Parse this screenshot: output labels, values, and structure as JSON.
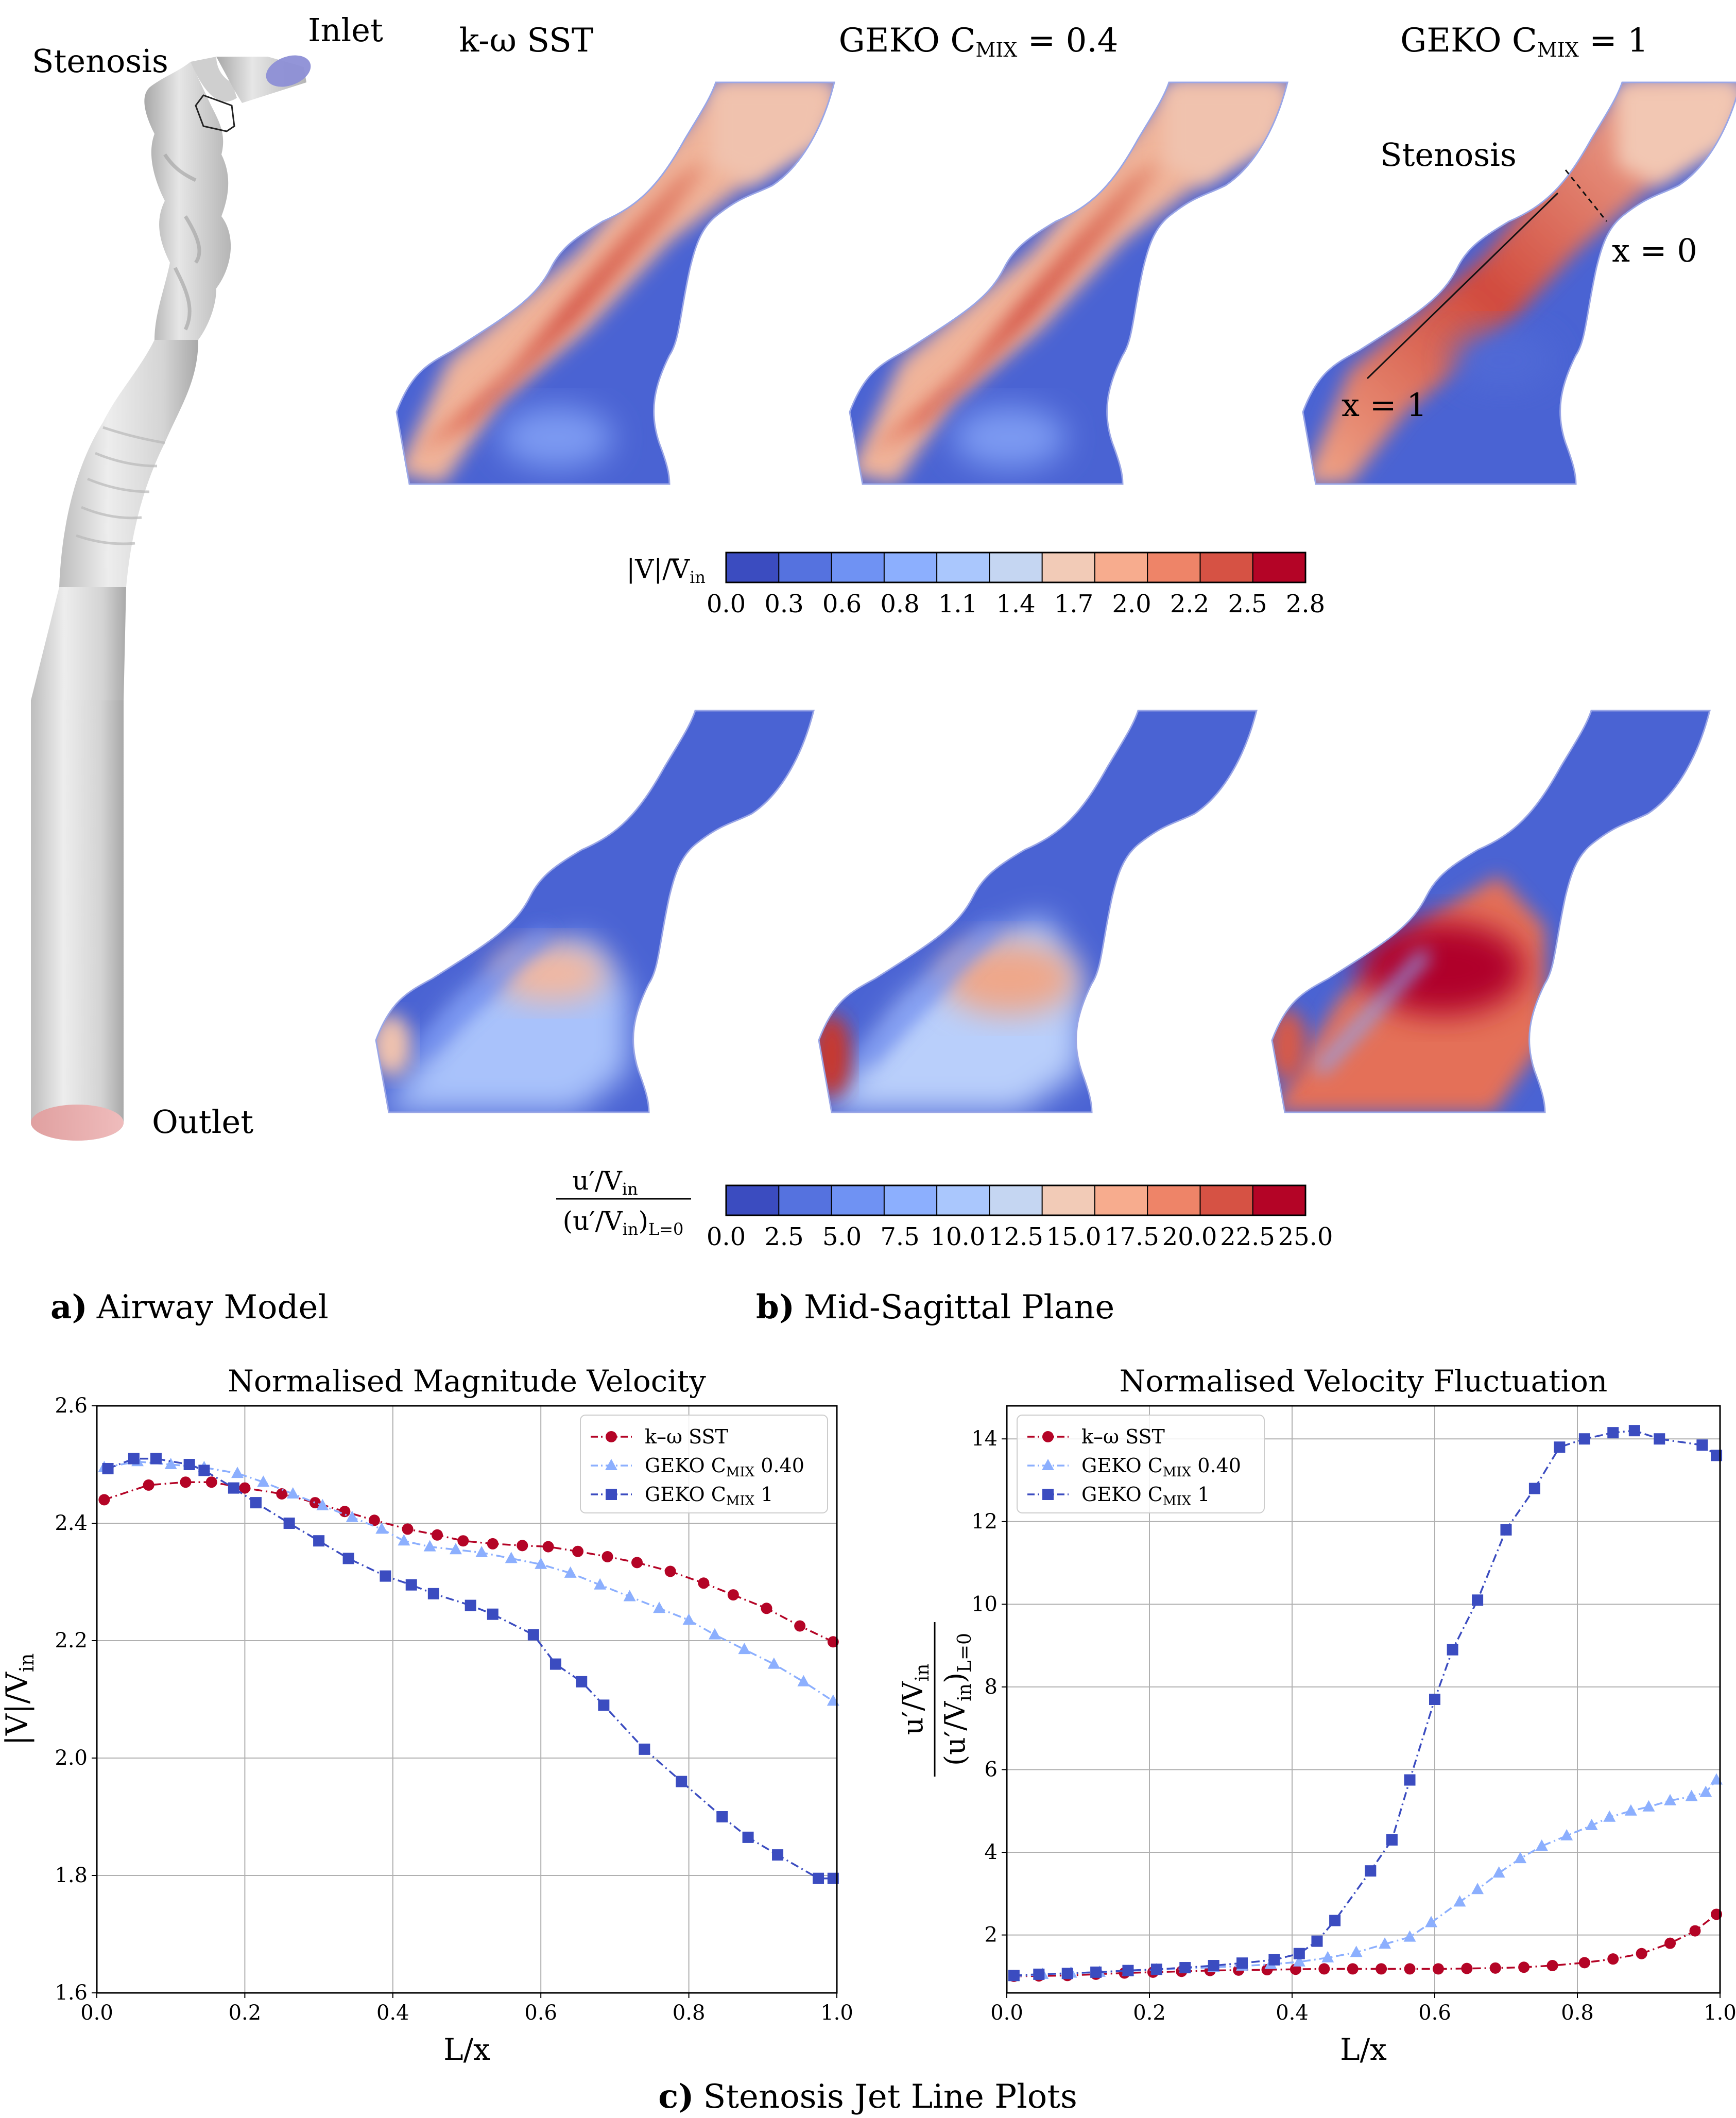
{
  "airway": {
    "label_stenosis": "Stenosis",
    "label_inlet": "Inlet",
    "label_outlet": "Outlet"
  },
  "contours": {
    "col_titles": [
      "k-ω SST",
      "GEKO C",
      "GEKO C"
    ],
    "col_title_sub": [
      "",
      "MIX",
      "MIX"
    ],
    "col_title_suffix": [
      "",
      " = 0.4",
      " = 1"
    ],
    "annot_stenosis": "Stenosis",
    "annot_x0": "x = 0",
    "annot_x1": "x = 1",
    "cbar1": {
      "label": "|V|/V",
      "label_sub": "in",
      "ticks": [
        "0.0",
        "0.3",
        "0.6",
        "0.8",
        "1.1",
        "1.4",
        "1.7",
        "2.0",
        "2.2",
        "2.5",
        "2.8"
      ],
      "colors": [
        "#3b4cc0",
        "#5572df",
        "#6f92f3",
        "#8caffe",
        "#aac7fd",
        "#c5d6f2",
        "#f2cbb7",
        "#f7ac8e",
        "#ee8468",
        "#d65244",
        "#b40426"
      ]
    },
    "cbar2": {
      "num": "u′/V",
      "num_sub": "in",
      "den": "(u′/V",
      "den_sub": "in",
      "den_tail": ")",
      "den_tail_sub": "L=0",
      "ticks": [
        "0.0",
        "2.5",
        "5.0",
        "7.5",
        "10.0",
        "12.5",
        "15.0",
        "17.5",
        "20.0",
        "22.5",
        "25.0"
      ],
      "colors": [
        "#3b4cc0",
        "#5572df",
        "#6f92f3",
        "#8caffe",
        "#aac7fd",
        "#c5d6f2",
        "#f2cbb7",
        "#f7ac8e",
        "#ee8468",
        "#d65244",
        "#b40426"
      ]
    }
  },
  "captions": {
    "a_letter": "a)",
    "a_text": "Airway Model",
    "b_letter": "b)",
    "b_text": "Mid-Sagittal Plane",
    "c_letter": "c)",
    "c_text": "Stenosis Jet Line Plots"
  },
  "chart_data": [
    {
      "type": "line",
      "title": "Normalised Magnitude Velocity",
      "xlabel": "L/x",
      "ylabel": "|V|/V",
      "ylabel_sub": "in",
      "xlim": [
        0,
        1
      ],
      "ylim": [
        1.6,
        2.6
      ],
      "xticks": [
        "0.0",
        "0.2",
        "0.4",
        "0.6",
        "0.8",
        "1.0"
      ],
      "yticks": [
        "1.6",
        "1.8",
        "2.0",
        "2.2",
        "2.4",
        "2.6"
      ],
      "grid": true,
      "legend_position": "top-right",
      "series": [
        {
          "name": "k–ω SST",
          "color": "#b40426",
          "marker": "circle",
          "x": [
            0.01,
            0.07,
            0.12,
            0.155,
            0.2,
            0.25,
            0.295,
            0.335,
            0.375,
            0.42,
            0.46,
            0.495,
            0.535,
            0.575,
            0.61,
            0.65,
            0.69,
            0.73,
            0.775,
            0.82,
            0.86,
            0.905,
            0.95,
            0.995
          ],
          "y": [
            2.44,
            2.465,
            2.47,
            2.47,
            2.46,
            2.45,
            2.435,
            2.42,
            2.405,
            2.39,
            2.38,
            2.37,
            2.365,
            2.362,
            2.36,
            2.352,
            2.343,
            2.333,
            2.318,
            2.298,
            2.278,
            2.255,
            2.225,
            2.198
          ]
        },
        {
          "name": "GEKO C_MIX 0.40",
          "color": "#8caffe",
          "marker": "triangle",
          "x": [
            0.01,
            0.055,
            0.1,
            0.145,
            0.19,
            0.225,
            0.265,
            0.305,
            0.345,
            0.385,
            0.415,
            0.45,
            0.485,
            0.52,
            0.56,
            0.6,
            0.64,
            0.68,
            0.72,
            0.76,
            0.8,
            0.835,
            0.875,
            0.915,
            0.955,
            0.995
          ],
          "y": [
            2.495,
            2.505,
            2.5,
            2.495,
            2.485,
            2.47,
            2.45,
            2.43,
            2.41,
            2.39,
            2.37,
            2.36,
            2.355,
            2.35,
            2.34,
            2.33,
            2.315,
            2.295,
            2.275,
            2.255,
            2.235,
            2.21,
            2.185,
            2.16,
            2.13,
            2.097
          ]
        },
        {
          "name": "GEKO C_MIX 1",
          "color": "#3b4cc0",
          "marker": "square",
          "x": [
            0.015,
            0.05,
            0.08,
            0.125,
            0.145,
            0.185,
            0.215,
            0.26,
            0.3,
            0.34,
            0.39,
            0.425,
            0.455,
            0.505,
            0.535,
            0.59,
            0.62,
            0.655,
            0.685,
            0.74,
            0.79,
            0.845,
            0.88,
            0.92,
            0.975,
            0.995
          ],
          "y": [
            2.493,
            2.51,
            2.51,
            2.5,
            2.49,
            2.46,
            2.435,
            2.4,
            2.37,
            2.34,
            2.31,
            2.295,
            2.28,
            2.26,
            2.245,
            2.21,
            2.16,
            2.13,
            2.09,
            2.015,
            1.96,
            1.9,
            1.865,
            1.835,
            1.795,
            1.795
          ]
        }
      ]
    },
    {
      "type": "line",
      "title": "Normalised Velocity Fluctuation",
      "xlabel": "L/x",
      "ylabel_num": "u′/V",
      "ylabel_num_sub": "in",
      "ylabel_den": "(u′/V",
      "ylabel_den_sub": "in",
      "ylabel_den_tail": ")",
      "ylabel_den_tail_sub": "L=0",
      "xlim": [
        0,
        1
      ],
      "ylim": [
        0.6,
        14.8
      ],
      "xticks": [
        "0.0",
        "0.2",
        "0.4",
        "0.6",
        "0.8",
        "1.0"
      ],
      "yticks": [
        "2",
        "4",
        "6",
        "8",
        "10",
        "12",
        "14"
      ],
      "grid": true,
      "legend_position": "top-left",
      "series": [
        {
          "name": "k–ω SST",
          "color": "#b40426",
          "marker": "circle",
          "x": [
            0.01,
            0.045,
            0.085,
            0.125,
            0.165,
            0.205,
            0.245,
            0.285,
            0.325,
            0.365,
            0.405,
            0.445,
            0.485,
            0.525,
            0.565,
            0.605,
            0.645,
            0.685,
            0.725,
            0.765,
            0.81,
            0.85,
            0.89,
            0.93,
            0.965,
            0.995
          ],
          "y": [
            1.0,
            1.01,
            1.02,
            1.05,
            1.08,
            1.1,
            1.12,
            1.14,
            1.15,
            1.16,
            1.17,
            1.18,
            1.18,
            1.18,
            1.18,
            1.18,
            1.19,
            1.2,
            1.22,
            1.26,
            1.33,
            1.42,
            1.55,
            1.8,
            2.1,
            2.5
          ]
        },
        {
          "name": "GEKO C_MIX 0.40",
          "color": "#8caffe",
          "marker": "triangle",
          "x": [
            0.01,
            0.05,
            0.09,
            0.13,
            0.17,
            0.21,
            0.25,
            0.29,
            0.33,
            0.37,
            0.41,
            0.45,
            0.49,
            0.53,
            0.565,
            0.595,
            0.635,
            0.66,
            0.69,
            0.72,
            0.75,
            0.785,
            0.82,
            0.845,
            0.875,
            0.9,
            0.93,
            0.96,
            0.98,
            0.995
          ],
          "y": [
            1.0,
            1.05,
            1.08,
            1.1,
            1.13,
            1.16,
            1.19,
            1.22,
            1.25,
            1.29,
            1.35,
            1.45,
            1.58,
            1.78,
            1.95,
            2.3,
            2.8,
            3.1,
            3.5,
            3.85,
            4.15,
            4.4,
            4.65,
            4.85,
            5.0,
            5.1,
            5.25,
            5.35,
            5.45,
            5.75
          ]
        },
        {
          "name": "GEKO C_MIX 1",
          "color": "#3b4cc0",
          "marker": "square",
          "x": [
            0.01,
            0.045,
            0.085,
            0.125,
            0.17,
            0.21,
            0.25,
            0.29,
            0.33,
            0.375,
            0.41,
            0.435,
            0.46,
            0.51,
            0.54,
            0.565,
            0.6,
            0.625,
            0.66,
            0.7,
            0.74,
            0.775,
            0.81,
            0.85,
            0.88,
            0.915,
            0.975,
            0.995
          ],
          "y": [
            1.02,
            1.05,
            1.07,
            1.1,
            1.14,
            1.17,
            1.21,
            1.26,
            1.32,
            1.4,
            1.55,
            1.85,
            2.35,
            3.55,
            4.3,
            5.75,
            7.7,
            8.9,
            10.1,
            11.8,
            12.8,
            13.8,
            14.0,
            14.15,
            14.2,
            14.0,
            13.85,
            13.6
          ]
        }
      ]
    }
  ]
}
